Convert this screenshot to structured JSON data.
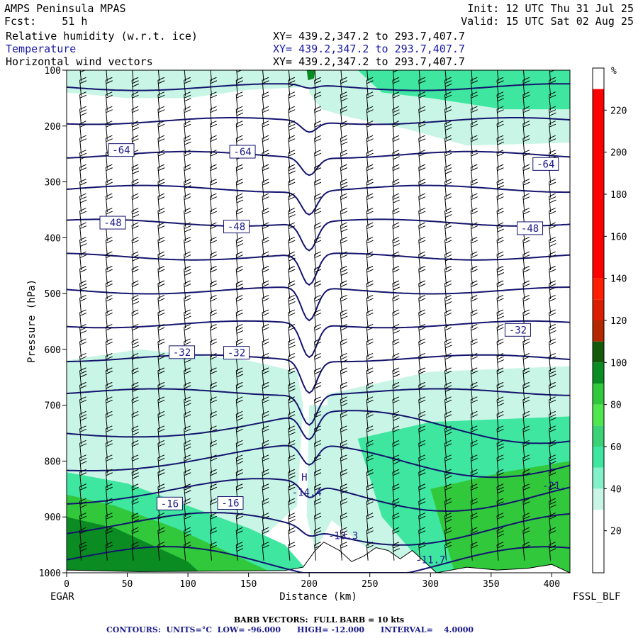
{
  "header": {
    "line1_left": "AMPS Peninsula MPAS",
    "line1_right": "Init: 12 UTC Thu 31 Jul 25",
    "line2_left": "Fcst:    51 h",
    "line2_right": "Valid: 15 UTC Sat 02 Aug 25",
    "fields": [
      {
        "name": "Relative humidity (w.r.t. ice)",
        "xy": "XY= 439.2,347.2 to 293.7,407.7"
      },
      {
        "name": "Temperature",
        "xy": "XY= 439.2,347.2 to 293.7,407.7"
      },
      {
        "name": "Horizontal wind vectors",
        "xy": "XY= 439.2,347.2 to 293.7,407.7"
      }
    ]
  },
  "colors": {
    "contour": "#14146e",
    "rh_light": "#c8f5e6",
    "rh_mid": "#3ee6a0",
    "rh_green": "#32c83c",
    "rh_dark": "#0a8c23",
    "frame": "#000000"
  },
  "footer": {
    "left_station": "EGAR",
    "right_station": "FSSL_BLF",
    "barb_note": "BARB VECTORS:  FULL BARB = 10 kts",
    "contour_note": "CONTOURS:  UNITS=°C  LOW= -96.000      HIGH= -12.000      INTERVAL=    4.0000"
  },
  "chart_data": {
    "type": "heatmap",
    "xlabel": "Distance (km)",
    "ylabel": "Pressure (hPa)",
    "xlim": [
      0,
      415
    ],
    "ylim": [
      1000,
      100
    ],
    "x_ticks": [
      0,
      50,
      100,
      150,
      200,
      250,
      300,
      350,
      400
    ],
    "y_ticks": [
      100,
      200,
      300,
      400,
      500,
      600,
      700,
      800,
      900,
      1000
    ],
    "colorbar": {
      "unit": "%",
      "ticks": [
        20,
        40,
        60,
        80,
        100,
        120,
        140,
        160,
        180,
        200,
        220
      ],
      "bins": [
        {
          "from": 0,
          "to": 10,
          "color": "#ffffff"
        },
        {
          "from": 10,
          "to": 20,
          "color": "#ffffff"
        },
        {
          "from": 20,
          "to": 30,
          "color": "#ffffff"
        },
        {
          "from": 30,
          "to": 40,
          "color": "#c8f5e6"
        },
        {
          "from": 40,
          "to": 50,
          "color": "#82f0c8"
        },
        {
          "from": 50,
          "to": 60,
          "color": "#3ee6a0"
        },
        {
          "from": 60,
          "to": 70,
          "color": "#3cd278"
        },
        {
          "from": 70,
          "to": 80,
          "color": "#50e650"
        },
        {
          "from": 80,
          "to": 90,
          "color": "#32c83c"
        },
        {
          "from": 90,
          "to": 100,
          "color": "#0a8c23"
        },
        {
          "from": 100,
          "to": 110,
          "color": "#145a0a"
        },
        {
          "from": 110,
          "to": 120,
          "color": "#b42800"
        },
        {
          "from": 120,
          "to": 130,
          "color": "#dc1e00"
        },
        {
          "from": 130,
          "to": 140,
          "color": "#ff1e00"
        },
        {
          "from": 140,
          "to": 230,
          "color": "#ff0000"
        }
      ]
    },
    "contour_labels": [
      {
        "text": "-64",
        "x": 45,
        "p": 243
      },
      {
        "text": "-64",
        "x": 145,
        "p": 246
      },
      {
        "text": "-64",
        "x": 395,
        "p": 268
      },
      {
        "text": "-48",
        "x": 38,
        "p": 373
      },
      {
        "text": "-48",
        "x": 140,
        "p": 380
      },
      {
        "text": "-48",
        "x": 382,
        "p": 383
      },
      {
        "text": "-32",
        "x": 95,
        "p": 605
      },
      {
        "text": "-32",
        "x": 140,
        "p": 606
      },
      {
        "text": "-32",
        "x": 372,
        "p": 565
      },
      {
        "text": "-16",
        "x": 85,
        "p": 876
      },
      {
        "text": "-16",
        "x": 135,
        "p": 875
      }
    ],
    "extrema_labels": [
      {
        "text": "H",
        "x": 196,
        "p": 835
      },
      {
        "text": "-14.4",
        "x": 198,
        "p": 862
      },
      {
        "text": "-13.3",
        "x": 228,
        "p": 940
      },
      {
        "text": "L",
        "x": 400,
        "p": 815
      },
      {
        "text": "-21.",
        "x": 402,
        "p": 850
      },
      {
        "text": "-11.7",
        "x": 300,
        "p": 983
      }
    ],
    "isotherms_degC": [
      -68,
      -64,
      -60,
      -56,
      -52,
      -48,
      -44,
      -40,
      -36,
      -32,
      -28,
      -24,
      -20,
      -16,
      -12
    ],
    "contour_interval": 4,
    "contour_low": -96,
    "contour_high": -12,
    "barb_full_kts": 10
  }
}
